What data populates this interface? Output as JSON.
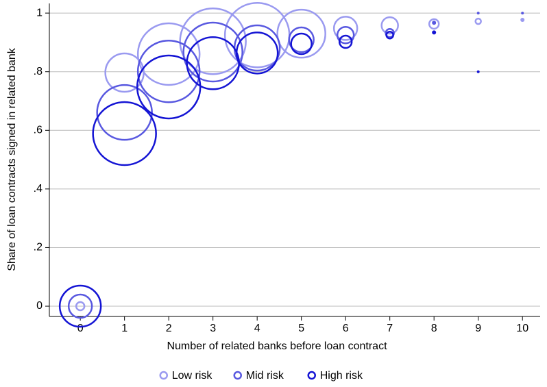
{
  "chart_data": {
    "type": "scatter",
    "x_label": "Number of related banks before loan contract",
    "y_label": "Share of loan contracts signed in related bank",
    "x": [
      0,
      1,
      2,
      3,
      4,
      5,
      6,
      7,
      8,
      9,
      10
    ],
    "series": [
      {
        "name": "Low risk",
        "color": "#9a9af0",
        "values": [
          0,
          0.797,
          0.86,
          0.904,
          0.925,
          0.93,
          0.948,
          0.958,
          0.963,
          0.972,
          0.977
        ],
        "sizes": [
          36,
          784,
          2025,
          2304,
          2209,
          1225,
          289,
          144,
          49,
          16,
          9
        ]
      },
      {
        "name": "Mid risk",
        "color": "#5858e0",
        "values": [
          0,
          0.661,
          0.801,
          0.867,
          0.881,
          0.909,
          0.925,
          0.932,
          0.967,
          1.0,
          1.0
        ],
        "sizes": [
          289,
          1600,
          2025,
          1849,
          1089,
          324,
          144,
          36,
          9,
          4,
          4
        ]
      },
      {
        "name": "High risk",
        "color": "#1414d4",
        "values": [
          0,
          0.589,
          0.748,
          0.829,
          0.864,
          0.895,
          0.902,
          0.925,
          0.934,
          0.8,
          null
        ],
        "sizes": [
          900,
          2116,
          2116,
          1444,
          900,
          225,
          81,
          25,
          9,
          4,
          null
        ]
      }
    ],
    "xlim": [
      -0.7,
      10.4
    ],
    "ylim": [
      -0.035,
      1.033
    ],
    "xticks": [
      0,
      1,
      2,
      3,
      4,
      5,
      6,
      7,
      8,
      9,
      10
    ],
    "yticks": [
      0,
      {
        "value": 0.2,
        "label": ".2"
      },
      {
        "value": 0.4,
        "label": ".4"
      },
      {
        "value": 0.6,
        "label": ".6"
      },
      {
        "value": 0.8,
        "label": ".8"
      },
      1
    ],
    "grid": true,
    "legend": "bottom"
  }
}
